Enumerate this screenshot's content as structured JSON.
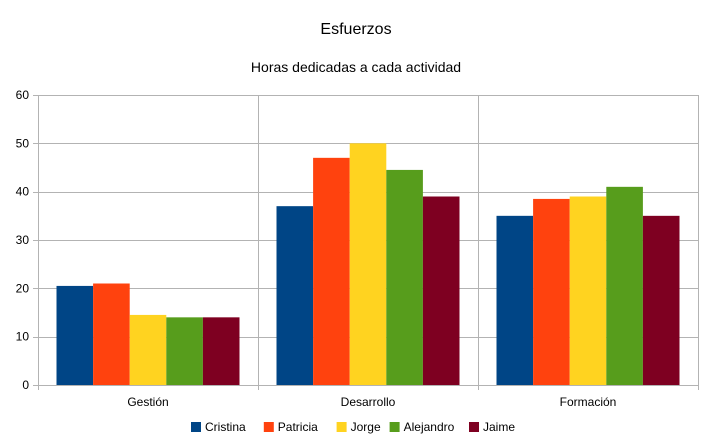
{
  "chart_data": {
    "type": "bar",
    "title": "Esfuerzos",
    "subtitle": "Horas dedicadas a cada actividad",
    "categories": [
      "Gestión",
      "Desarrollo",
      "Formación"
    ],
    "series": [
      {
        "name": "Cristina",
        "color": "#004586",
        "values": [
          20.5,
          37,
          35
        ]
      },
      {
        "name": "Patricia",
        "color": "#ff420e",
        "values": [
          21,
          47,
          38.5
        ]
      },
      {
        "name": "Jorge",
        "color": "#ffd320",
        "values": [
          14.5,
          50,
          39
        ]
      },
      {
        "name": "Alejandro",
        "color": "#579d1c",
        "values": [
          14,
          44.5,
          41
        ]
      },
      {
        "name": "Jaime",
        "color": "#7e0021",
        "values": [
          14,
          39,
          35
        ]
      }
    ],
    "ylim": [
      0,
      60
    ],
    "yticks": [
      0,
      10,
      20,
      30,
      40,
      50,
      60
    ],
    "grid": true,
    "legend": "bottom"
  }
}
